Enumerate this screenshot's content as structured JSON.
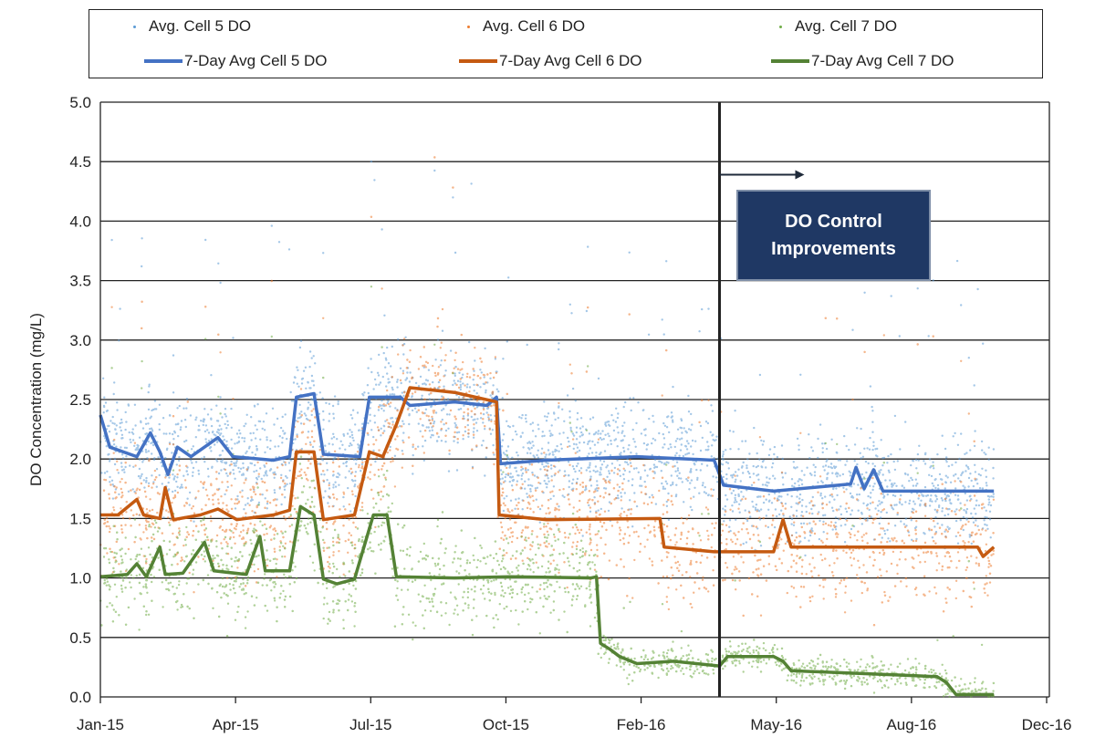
{
  "chart_data": {
    "type": "scatter+line",
    "title": "",
    "xlabel": "",
    "ylabel": "DO Concentration (mg/L)",
    "x_unit": "days since Jan 1 2015",
    "xlim": [
      0,
      700
    ],
    "ylim": [
      0,
      5
    ],
    "x_ticks": [
      {
        "value": 0,
        "label": "Jan-15"
      },
      {
        "value": 100,
        "label": "Apr-15"
      },
      {
        "value": 200,
        "label": "Jul-15"
      },
      {
        "value": 300,
        "label": "Oct-15"
      },
      {
        "value": 400,
        "label": "Feb-16"
      },
      {
        "value": 500,
        "label": "May-16"
      },
      {
        "value": 600,
        "label": "Aug-16"
      },
      {
        "value": 700,
        "label": "Dec-16"
      }
    ],
    "y_ticks": [
      "0.0",
      "0.5",
      "1.0",
      "1.5",
      "2.0",
      "2.5",
      "3.0",
      "3.5",
      "4.0",
      "4.5",
      "5.0"
    ],
    "grid": "horizontal",
    "legend_position": "top",
    "series": [
      {
        "name": "Avg. Cell 5 DO",
        "kind": "scatter",
        "color": "#5b9bd5",
        "follows": 0,
        "spread": 0.22
      },
      {
        "name": "Avg. Cell 6 DO",
        "kind": "scatter",
        "color": "#ed7d31",
        "follows": 1,
        "spread": 0.25
      },
      {
        "name": "Avg. Cell 7 DO",
        "kind": "scatter",
        "color": "#70ad47",
        "follows": 2,
        "spread": 0.2
      },
      {
        "name": "7-Day Avg Cell 5 DO",
        "kind": "line",
        "color": "#4472c4",
        "points": [
          [
            0,
            2.37
          ],
          [
            7,
            2.1
          ],
          [
            27,
            2.02
          ],
          [
            37,
            2.22
          ],
          [
            44,
            2.06
          ],
          [
            50,
            1.87
          ],
          [
            57,
            2.1
          ],
          [
            67,
            2.02
          ],
          [
            87,
            2.18
          ],
          [
            98,
            2.02
          ],
          [
            128,
            1.99
          ],
          [
            140,
            2.02
          ],
          [
            145,
            2.52
          ],
          [
            158,
            2.55
          ],
          [
            165,
            2.04
          ],
          [
            192,
            2.02
          ],
          [
            199,
            2.52
          ],
          [
            222,
            2.52
          ],
          [
            229,
            2.45
          ],
          [
            262,
            2.48
          ],
          [
            286,
            2.45
          ],
          [
            293,
            2.52
          ],
          [
            296,
            1.96
          ],
          [
            330,
            1.99
          ],
          [
            397,
            2.02
          ],
          [
            454,
            1.99
          ],
          [
            461,
            1.78
          ],
          [
            498,
            1.73
          ],
          [
            555,
            1.79
          ],
          [
            559,
            1.93
          ],
          [
            565,
            1.75
          ],
          [
            572,
            1.91
          ],
          [
            579,
            1.73
          ],
          [
            599,
            1.73
          ],
          [
            661,
            1.73
          ]
        ]
      },
      {
        "name": "7-Day Avg Cell 6 DO",
        "kind": "line",
        "color": "#c55a11",
        "points": [
          [
            0,
            1.53
          ],
          [
            13,
            1.53
          ],
          [
            27,
            1.66
          ],
          [
            32,
            1.53
          ],
          [
            44,
            1.5
          ],
          [
            48,
            1.76
          ],
          [
            54,
            1.49
          ],
          [
            74,
            1.53
          ],
          [
            87,
            1.58
          ],
          [
            101,
            1.49
          ],
          [
            128,
            1.53
          ],
          [
            140,
            1.57
          ],
          [
            145,
            2.06
          ],
          [
            158,
            2.06
          ],
          [
            165,
            1.49
          ],
          [
            188,
            1.53
          ],
          [
            199,
            2.06
          ],
          [
            209,
            2.02
          ],
          [
            219,
            2.29
          ],
          [
            229,
            2.6
          ],
          [
            262,
            2.56
          ],
          [
            293,
            2.48
          ],
          [
            295,
            1.53
          ],
          [
            330,
            1.49
          ],
          [
            414,
            1.5
          ],
          [
            417,
            1.26
          ],
          [
            454,
            1.22
          ],
          [
            498,
            1.22
          ],
          [
            505,
            1.49
          ],
          [
            511,
            1.26
          ],
          [
            599,
            1.26
          ],
          [
            649,
            1.26
          ],
          [
            653,
            1.18
          ],
          [
            661,
            1.26
          ]
        ]
      },
      {
        "name": "7-Day Avg Cell 7 DO",
        "kind": "line",
        "color": "#548235",
        "points": [
          [
            0,
            1.01
          ],
          [
            20,
            1.03
          ],
          [
            27,
            1.12
          ],
          [
            34,
            1.01
          ],
          [
            44,
            1.26
          ],
          [
            48,
            1.03
          ],
          [
            61,
            1.04
          ],
          [
            77,
            1.3
          ],
          [
            84,
            1.06
          ],
          [
            108,
            1.03
          ],
          [
            118,
            1.35
          ],
          [
            122,
            1.06
          ],
          [
            140,
            1.06
          ],
          [
            148,
            1.6
          ],
          [
            158,
            1.53
          ],
          [
            165,
            0.99
          ],
          [
            175,
            0.95
          ],
          [
            188,
            0.99
          ],
          [
            202,
            1.53
          ],
          [
            212,
            1.53
          ],
          [
            219,
            1.01
          ],
          [
            262,
            1.0
          ],
          [
            303,
            1.01
          ],
          [
            363,
            1.0
          ],
          [
            367,
            1.01
          ],
          [
            370,
            0.45
          ],
          [
            377,
            0.4
          ],
          [
            384,
            0.34
          ],
          [
            397,
            0.28
          ],
          [
            424,
            0.3
          ],
          [
            458,
            0.26
          ],
          [
            464,
            0.34
          ],
          [
            498,
            0.34
          ],
          [
            505,
            0.3
          ],
          [
            511,
            0.22
          ],
          [
            599,
            0.18
          ],
          [
            619,
            0.17
          ],
          [
            626,
            0.12
          ],
          [
            633,
            0.02
          ],
          [
            661,
            0.02
          ]
        ]
      }
    ],
    "annotations": {
      "vertical_line_day": 458,
      "arrow_y": 4.39,
      "box_lines": [
        "DO Control",
        "Improvements"
      ]
    }
  }
}
